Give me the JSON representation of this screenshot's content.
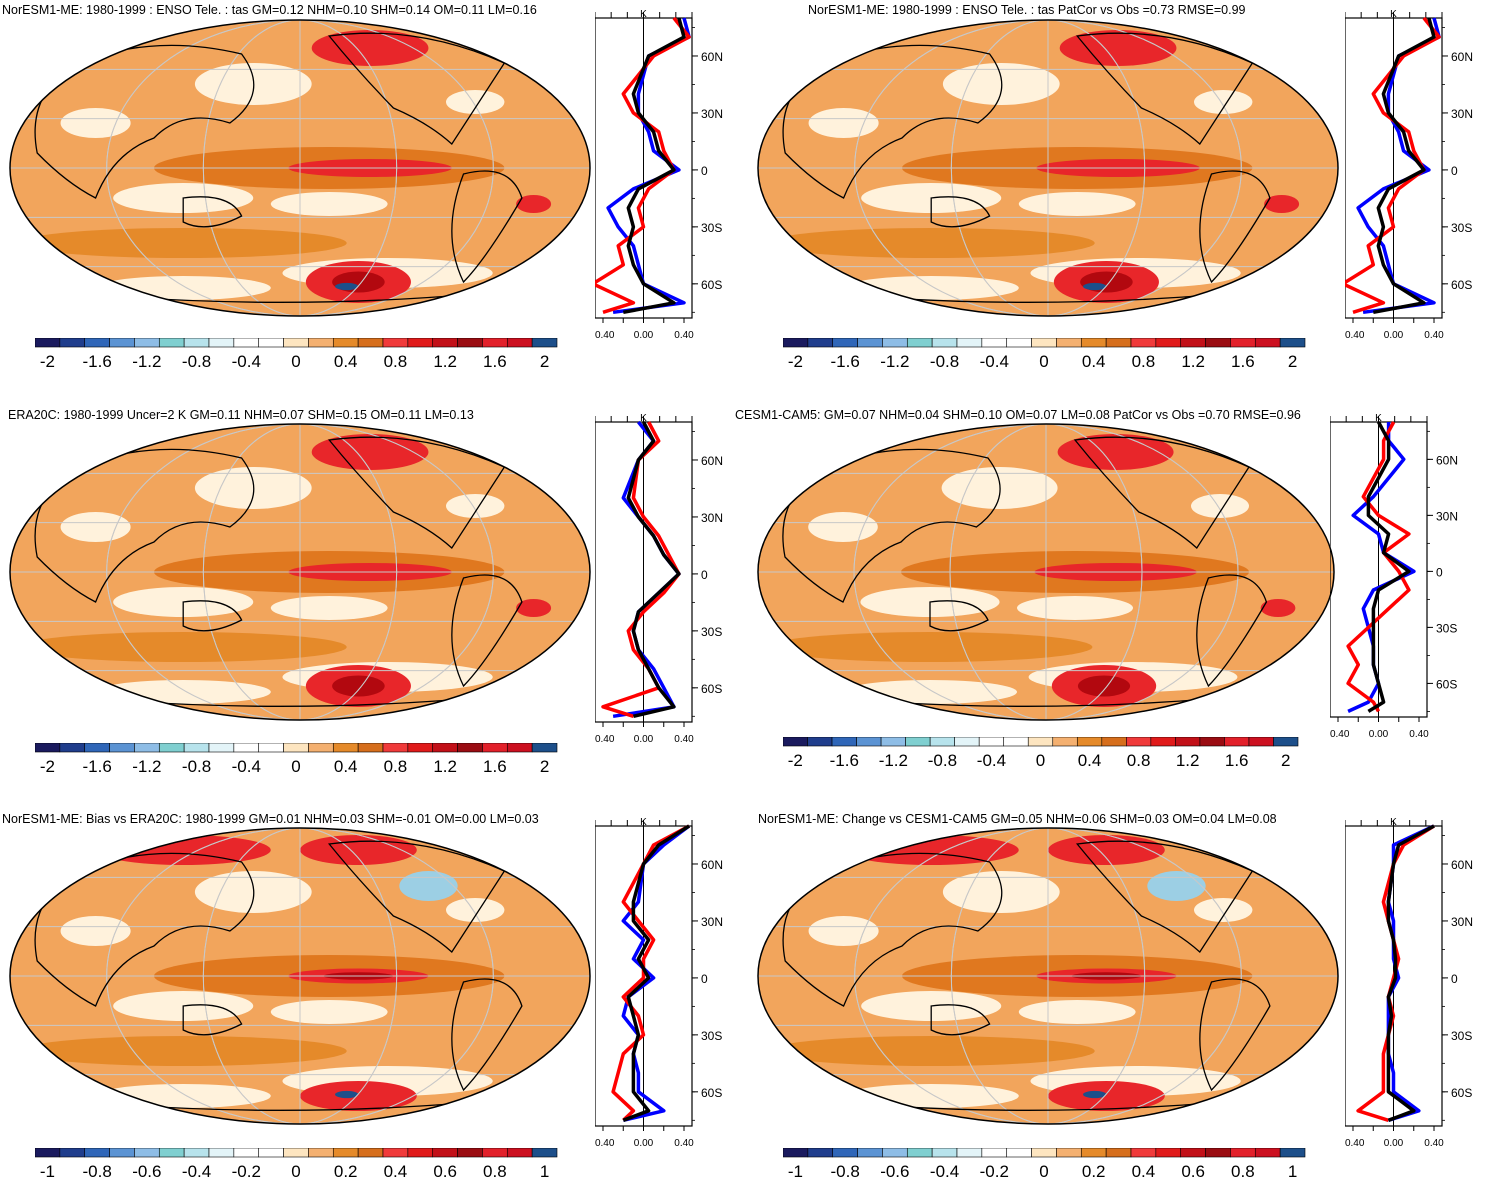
{
  "colors": {
    "scale": [
      "#1a1a5e",
      "#1f3d8c",
      "#2f66b8",
      "#5b93d3",
      "#8ebde6",
      "#7fcfd0",
      "#b7e3ec",
      "#e3f4f8",
      "#ffffff",
      "#ffffff",
      "#fde5c0",
      "#f4b070",
      "#e58a2a",
      "#d66e1c",
      "#f03a3a",
      "#e01a1a",
      "#c21018",
      "#9a0c12",
      "#e2202a",
      "#cc1020",
      "#1d4f8a"
    ],
    "land_outline": "#000000",
    "grid": "#c8c8c8",
    "model_line": "#0000ff",
    "obs_line": "#ff0000",
    "mean_line": "#000000"
  },
  "panels": [
    {
      "title": "NorESM1-ME: 1980-1999 : ENSO Tele. : tas GM=0.12 NHM=0.10 SHM=0.14 OM=0.11 LM=0.16",
      "colorbar_labels": [
        "-2",
        "-1.6",
        "-1.2",
        "-0.8",
        "-0.4",
        "0",
        "0.4",
        "0.8",
        "1.2",
        "1.6",
        "2"
      ],
      "zonal": {
        "unit": "K",
        "lat_labels": [
          "60N",
          "30N",
          "0",
          "30S",
          "60S"
        ],
        "x_labels": [
          "-0.40",
          "0.00",
          "0.40"
        ]
      }
    },
    {
      "title": "NorESM1-ME: 1980-1999 : ENSO Tele. : tas PatCor vs Obs =0.73 RMSE=0.99",
      "colorbar_labels": [
        "-2",
        "-1.6",
        "-1.2",
        "-0.8",
        "-0.4",
        "0",
        "0.4",
        "0.8",
        "1.2",
        "1.6",
        "2"
      ],
      "zonal": {
        "unit": "K",
        "lat_labels": [
          "60N",
          "30N",
          "0",
          "30S",
          "60S"
        ],
        "x_labels": [
          "-0.40",
          "0.00",
          "0.40"
        ]
      }
    },
    {
      "title": "ERA20C: 1980-1999 Uncer=2 K GM=0.11 NHM=0.07 SHM=0.15 OM=0.11 LM=0.13",
      "colorbar_labels": [
        "-2",
        "-1.6",
        "-1.2",
        "-0.8",
        "-0.4",
        "0",
        "0.4",
        "0.8",
        "1.2",
        "1.6",
        "2"
      ],
      "zonal": {
        "unit": "K",
        "lat_labels": [
          "60N",
          "30N",
          "0",
          "30S",
          "60S"
        ],
        "x_labels": [
          "-0.40",
          "0.00",
          "0.40"
        ]
      }
    },
    {
      "title": "CESM1-CAM5: GM=0.07 NHM=0.04 SHM=0.10 OM=0.07 LM=0.08 PatCor vs Obs =0.70 RMSE=0.96",
      "colorbar_labels": [
        "-2",
        "-1.6",
        "-1.2",
        "-0.8",
        "-0.4",
        "0",
        "0.4",
        "0.8",
        "1.2",
        "1.6",
        "2"
      ],
      "zonal": {
        "unit": "K",
        "lat_labels": [
          "60N",
          "30N",
          "0",
          "30S",
          "60S"
        ],
        "x_labels": [
          "-0.40",
          "0.00",
          "0.40"
        ]
      }
    },
    {
      "title": "NorESM1-ME: Bias vs ERA20C: 1980-1999 GM=0.01 NHM=0.03 SHM=-0.01 OM=0.00 LM=0.03",
      "colorbar_labels": [
        "-1",
        "-0.8",
        "-0.6",
        "-0.4",
        "-0.2",
        "0",
        "0.2",
        "0.4",
        "0.6",
        "0.8",
        "1"
      ],
      "zonal": {
        "unit": "K",
        "lat_labels": [
          "60N",
          "30N",
          "0",
          "30S",
          "60S"
        ],
        "x_labels": [
          "-0.40",
          "0.00",
          "0.40"
        ]
      }
    },
    {
      "title": "NorESM1-ME: Change vs CESM1-CAM5 GM=0.05 NHM=0.06 SHM=0.03 OM=0.04 LM=0.08",
      "colorbar_labels": [
        "-1",
        "-0.8",
        "-0.6",
        "-0.4",
        "-0.2",
        "0",
        "0.2",
        "0.4",
        "0.6",
        "0.8",
        "1"
      ],
      "zonal": {
        "unit": "K",
        "lat_labels": [
          "60N",
          "30N",
          "0",
          "30S",
          "60S"
        ],
        "x_labels": [
          "-0.40",
          "0.00",
          "0.40"
        ]
      }
    }
  ],
  "chart_data": [
    {
      "type": "heatmap",
      "title": "NorESM1-ME: 1980-1999 : ENSO Tele. : tas GM=0.12 NHM=0.10 SHM=0.14 OM=0.11 LM=0.16",
      "colorbar_range": [
        -2,
        2
      ],
      "lat_ticks": [
        "60N",
        "30N",
        "0",
        "30S",
        "60S"
      ],
      "zonal_xlim": [
        -0.4,
        0.4
      ],
      "zonal_series": [
        {
          "color": "blue",
          "lat": [
            80,
            70,
            60,
            40,
            30,
            20,
            10,
            0,
            -10,
            -20,
            -30,
            -40,
            -50,
            -60,
            -70,
            -75
          ],
          "values": [
            0.4,
            0.45,
            0.05,
            -0.05,
            -0.05,
            0.05,
            0.1,
            0.35,
            -0.1,
            -0.35,
            -0.25,
            -0.1,
            -0.05,
            0.0,
            0.4,
            -0.3
          ]
        },
        {
          "color": "red",
          "lat": [
            80,
            70,
            60,
            40,
            30,
            20,
            10,
            0,
            -10,
            -20,
            -30,
            -40,
            -50,
            -60,
            -70,
            -75
          ],
          "values": [
            0.3,
            0.45,
            0.1,
            -0.2,
            -0.1,
            0.15,
            0.2,
            0.3,
            0.05,
            -0.05,
            0.0,
            -0.25,
            -0.2,
            -0.5,
            -0.1,
            -0.4
          ]
        },
        {
          "color": "black",
          "lat": [
            80,
            70,
            60,
            40,
            30,
            20,
            10,
            0,
            -10,
            -20,
            -30,
            -40,
            -50,
            -60,
            -70,
            -75
          ],
          "values": [
            0.35,
            0.4,
            0.05,
            -0.1,
            -0.05,
            0.1,
            0.15,
            0.3,
            -0.05,
            -0.15,
            -0.1,
            -0.15,
            -0.1,
            0.0,
            0.3,
            -0.2
          ]
        }
      ]
    },
    {
      "type": "heatmap",
      "title": "NorESM1-ME: 1980-1999 : ENSO Tele. : tas PatCor vs Obs =0.73 RMSE=0.99",
      "colorbar_range": [
        -2,
        2
      ],
      "lat_ticks": [
        "60N",
        "30N",
        "0",
        "30S",
        "60S"
      ],
      "zonal_xlim": [
        -0.4,
        0.4
      ],
      "zonal_series": [
        {
          "color": "blue",
          "lat": [
            80,
            70,
            60,
            40,
            30,
            20,
            10,
            0,
            -10,
            -20,
            -30,
            -40,
            -50,
            -60,
            -70,
            -75
          ],
          "values": [
            0.4,
            0.45,
            0.05,
            -0.05,
            -0.05,
            0.05,
            0.1,
            0.35,
            -0.1,
            -0.35,
            -0.25,
            -0.1,
            -0.05,
            0.0,
            0.4,
            -0.3
          ]
        },
        {
          "color": "red",
          "lat": [
            80,
            70,
            60,
            40,
            30,
            20,
            10,
            0,
            -10,
            -20,
            -30,
            -40,
            -50,
            -60,
            -70,
            -75
          ],
          "values": [
            0.3,
            0.45,
            0.1,
            -0.2,
            -0.1,
            0.15,
            0.2,
            0.3,
            0.05,
            -0.05,
            0.0,
            -0.25,
            -0.2,
            -0.5,
            -0.1,
            -0.4
          ]
        },
        {
          "color": "black",
          "lat": [
            80,
            70,
            60,
            40,
            30,
            20,
            10,
            0,
            -10,
            -20,
            -30,
            -40,
            -50,
            -60,
            -70,
            -75
          ],
          "values": [
            0.35,
            0.4,
            0.05,
            -0.1,
            -0.05,
            0.1,
            0.15,
            0.3,
            -0.05,
            -0.15,
            -0.1,
            -0.15,
            -0.1,
            0.0,
            0.3,
            -0.2
          ]
        }
      ]
    },
    {
      "type": "heatmap",
      "title": "ERA20C: 1980-1999 Uncer=2 K GM=0.11 NHM=0.07 SHM=0.15 OM=0.11 LM=0.13",
      "colorbar_range": [
        -2,
        2
      ],
      "lat_ticks": [
        "60N",
        "30N",
        "0",
        "30S",
        "60S"
      ],
      "zonal_xlim": [
        -0.4,
        0.4
      ],
      "zonal_series": [
        {
          "color": "blue",
          "lat": [
            80,
            70,
            60,
            40,
            30,
            20,
            10,
            0,
            -10,
            -20,
            -30,
            -40,
            -50,
            -60,
            -70,
            -75
          ],
          "values": [
            -0.05,
            0.1,
            -0.05,
            -0.2,
            -0.05,
            0.1,
            0.2,
            0.35,
            0.15,
            -0.05,
            -0.1,
            -0.05,
            0.1,
            0.2,
            0.3,
            -0.3
          ]
        },
        {
          "color": "red",
          "lat": [
            80,
            70,
            60,
            40,
            30,
            20,
            10,
            0,
            -10,
            -20,
            -30,
            -40,
            -50,
            -60,
            -70,
            -75
          ],
          "values": [
            0.05,
            0.15,
            -0.05,
            -0.1,
            0.0,
            0.15,
            0.25,
            0.35,
            0.2,
            0.0,
            -0.15,
            -0.1,
            0.05,
            0.15,
            -0.4,
            -0.1
          ]
        },
        {
          "color": "black",
          "lat": [
            80,
            70,
            60,
            40,
            30,
            20,
            10,
            0,
            -10,
            -20,
            -30,
            -40,
            -50,
            -60,
            -70,
            -75
          ],
          "values": [
            0.0,
            0.1,
            -0.05,
            -0.15,
            -0.05,
            0.1,
            0.2,
            0.35,
            0.15,
            -0.05,
            -0.1,
            -0.05,
            0.05,
            0.15,
            0.3,
            -0.1
          ]
        }
      ]
    },
    {
      "type": "heatmap",
      "title": "CESM1-CAM5: GM=0.07 NHM=0.04 SHM=0.10 OM=0.07 LM=0.08 PatCor vs Obs =0.70 RMSE=0.96",
      "colorbar_range": [
        -2,
        2
      ],
      "lat_ticks": [
        "60N",
        "30N",
        "0",
        "30S",
        "60S"
      ],
      "zonal_xlim": [
        -0.4,
        0.4
      ],
      "zonal_series": [
        {
          "color": "blue",
          "lat": [
            80,
            70,
            60,
            40,
            30,
            20,
            10,
            0,
            -10,
            -20,
            -30,
            -40,
            -50,
            -60,
            -70,
            -75
          ],
          "values": [
            0.1,
            0.1,
            0.25,
            -0.05,
            -0.25,
            0.0,
            0.05,
            0.35,
            -0.05,
            -0.15,
            -0.1,
            -0.05,
            -0.05,
            0.0,
            -0.1,
            -0.3
          ]
        },
        {
          "color": "red",
          "lat": [
            80,
            70,
            60,
            40,
            30,
            20,
            10,
            0,
            -10,
            -20,
            -30,
            -40,
            -50,
            -60,
            -70,
            -75
          ],
          "values": [
            0.15,
            0.05,
            0.05,
            -0.15,
            0.0,
            0.3,
            0.05,
            0.2,
            0.3,
            0.1,
            -0.1,
            -0.3,
            -0.2,
            -0.3,
            -0.05,
            0.0
          ]
        },
        {
          "color": "black",
          "lat": [
            80,
            70,
            60,
            40,
            30,
            20,
            10,
            0,
            -10,
            -20,
            -30,
            -40,
            -50,
            -60,
            -70,
            -75
          ],
          "values": [
            0.0,
            0.1,
            0.1,
            -0.1,
            -0.1,
            0.1,
            0.05,
            0.3,
            0.0,
            -0.05,
            -0.05,
            -0.05,
            -0.05,
            0.0,
            0.05,
            -0.1
          ]
        }
      ]
    },
    {
      "type": "heatmap",
      "title": "NorESM1-ME: Bias vs ERA20C: 1980-1999 GM=0.01 NHM=0.03 SHM=-0.01 OM=0.00 LM=0.03",
      "colorbar_range": [
        -1,
        1
      ],
      "lat_ticks": [
        "60N",
        "30N",
        "0",
        "30S",
        "60S"
      ],
      "zonal_xlim": [
        -0.4,
        0.4
      ],
      "zonal_series": [
        {
          "color": "blue",
          "lat": [
            80,
            70,
            60,
            40,
            30,
            20,
            10,
            0,
            -10,
            -20,
            -30,
            -40,
            -50,
            -60,
            -70,
            -75
          ],
          "values": [
            0.45,
            0.2,
            0.0,
            -0.05,
            -0.2,
            0.0,
            -0.1,
            0.1,
            -0.15,
            -0.2,
            -0.05,
            -0.1,
            -0.05,
            -0.05,
            0.2,
            -0.2
          ]
        },
        {
          "color": "red",
          "lat": [
            80,
            70,
            60,
            40,
            30,
            20,
            10,
            0,
            -10,
            -20,
            -30,
            -40,
            -50,
            -60,
            -70,
            -75
          ],
          "values": [
            0.45,
            0.1,
            0.0,
            -0.2,
            -0.05,
            0.1,
            0.0,
            0.0,
            -0.2,
            -0.05,
            0.0,
            -0.2,
            -0.25,
            -0.3,
            -0.1,
            -0.2
          ]
        },
        {
          "color": "black",
          "lat": [
            80,
            70,
            60,
            40,
            30,
            20,
            10,
            0,
            -10,
            -20,
            -30,
            -40,
            -50,
            -60,
            -70,
            -75
          ],
          "values": [
            0.45,
            0.15,
            0.0,
            -0.1,
            -0.1,
            0.05,
            -0.05,
            0.05,
            -0.15,
            -0.1,
            -0.05,
            -0.1,
            -0.1,
            -0.1,
            0.05,
            -0.2
          ]
        }
      ]
    },
    {
      "type": "heatmap",
      "title": "NorESM1-ME: Change vs CESM1-CAM5 GM=0.05 NHM=0.06 SHM=0.03 OM=0.04 LM=0.08",
      "colorbar_range": [
        -1,
        1
      ],
      "lat_ticks": [
        "60N",
        "30N",
        "0",
        "30S",
        "60S"
      ],
      "zonal_xlim": [
        -0.4,
        0.4
      ],
      "zonal_series": [
        {
          "color": "blue",
          "lat": [
            80,
            70,
            60,
            40,
            30,
            20,
            10,
            0,
            -10,
            -20,
            -30,
            -40,
            -50,
            -60,
            -70,
            -75
          ],
          "values": [
            0.4,
            0.0,
            0.0,
            -0.05,
            0.0,
            0.0,
            0.0,
            0.05,
            -0.05,
            -0.05,
            -0.05,
            -0.05,
            0.0,
            0.0,
            0.25,
            -0.05
          ]
        },
        {
          "color": "red",
          "lat": [
            80,
            70,
            60,
            40,
            30,
            20,
            10,
            0,
            -10,
            -20,
            -30,
            -40,
            -50,
            -60,
            -70,
            -75
          ],
          "values": [
            0.4,
            0.1,
            0.0,
            -0.1,
            -0.05,
            0.0,
            0.05,
            0.0,
            -0.05,
            0.0,
            -0.05,
            -0.1,
            -0.1,
            -0.1,
            -0.35,
            -0.05
          ]
        },
        {
          "color": "black",
          "lat": [
            80,
            70,
            60,
            40,
            30,
            20,
            10,
            0,
            -10,
            -20,
            -30,
            -40,
            -50,
            -60,
            -70,
            -75
          ],
          "values": [
            0.4,
            0.05,
            0.0,
            -0.05,
            -0.05,
            0.0,
            0.02,
            0.02,
            -0.05,
            -0.02,
            -0.05,
            -0.05,
            -0.05,
            -0.05,
            0.2,
            -0.05
          ]
        }
      ]
    }
  ]
}
